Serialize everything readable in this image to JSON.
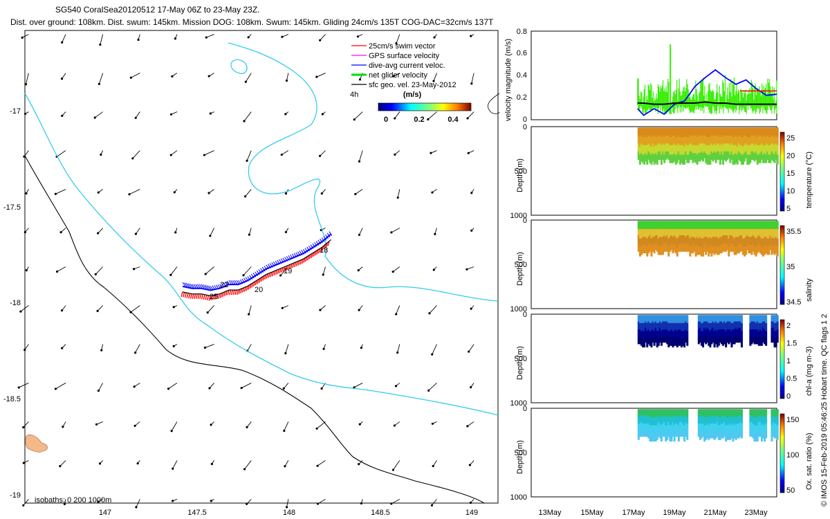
{
  "header": {
    "line1": "SG540 CoralSea20120512 17-May 06Z to 23-May 23Z.",
    "line2": "Dist. over ground: 108km. Dist. swum: 145km. Mission DOG: 108km. Swum: 145km. Gliding 24cm/s 135T COG-DAC=32cm/s 137T"
  },
  "map": {
    "xticks": [
      "147",
      "147.5",
      "148",
      "148.5",
      "149"
    ],
    "yticks": [
      "-17",
      "-17.5",
      "-18",
      "-18.5",
      "-19"
    ],
    "isobaths_label": "isobaths: 0   200  1000m",
    "track_labels": [
      "18",
      "19",
      "20",
      "22",
      "25"
    ],
    "h_label": "4h",
    "legend": [
      {
        "label": "25cm/s swim vector",
        "color": "#ff0000"
      },
      {
        "label": "GPS surface velocity",
        "color": "#ff00ff"
      },
      {
        "label": "dive-avg current veloc.",
        "color": "#0000ff"
      },
      {
        "label": "net glider velocity",
        "color": "#00dd00"
      },
      {
        "label": "sfc geo. vel. 23-May-2012",
        "color": "#000000"
      }
    ],
    "colorbar": {
      "title": "(m/s)",
      "ticks": [
        "0",
        "0.2",
        "0.4"
      ]
    }
  },
  "panels": {
    "velocity": {
      "ylabel": "velocity magnitude (m/s)",
      "yticks": [
        "0",
        "0.2",
        "0.4",
        "0.6",
        "0.8"
      ]
    },
    "depth_ylabel": "Depth (m)",
    "depth_ticks": [
      "0",
      "500",
      "1000"
    ],
    "temperature": {
      "label": "temperature (°C)",
      "cticks": [
        "5",
        "10",
        "15",
        "20",
        "25"
      ]
    },
    "salinity": {
      "label": "salinity",
      "cticks": [
        "34.5",
        "35",
        "35.5"
      ]
    },
    "chla": {
      "label": "chl-a (mg m-3)",
      "cticks": [
        "0",
        "0.5",
        "1",
        "1.5",
        "2"
      ]
    },
    "oxygen": {
      "label": "Ox. sat. ratio (%)",
      "cticks": [
        "50",
        "100",
        "150"
      ]
    },
    "xticks": [
      "13May",
      "15May",
      "17May",
      "19May",
      "21May",
      "23May"
    ]
  },
  "side_text": "© IMOS 15-Feb-2019 05:46:25 Hobart time. QC flags 1  2",
  "chart_data": [
    {
      "type": "scatter",
      "title": "SG540 CoralSea20120512 17-May 06Z to 23-May 23Z.",
      "xlim": [
        146.6,
        149.15
      ],
      "ylim": [
        -19.02,
        -16.58
      ],
      "track": {
        "x": [
          147.45,
          147.5,
          147.55,
          147.6,
          147.65,
          147.7,
          147.75,
          147.8,
          147.85,
          147.9,
          147.95,
          148.0,
          148.05,
          148.1,
          148.15,
          148.2,
          148.25
        ],
        "y": [
          -17.93,
          -17.94,
          -17.94,
          -17.95,
          -17.94,
          -17.92,
          -17.92,
          -17.9,
          -17.87,
          -17.84,
          -17.82,
          -17.8,
          -17.78,
          -17.76,
          -17.73,
          -17.7,
          -17.66
        ]
      }
    },
    {
      "type": "line",
      "title": "",
      "ylabel": "velocity magnitude (m/s)",
      "ylim": [
        0,
        0.8
      ],
      "x_days": [
        17.2,
        17.5,
        18.0,
        18.5,
        19.0,
        19.5,
        20.0,
        20.5,
        21.0,
        21.5,
        22.0,
        22.5,
        23.0,
        23.5,
        24.0
      ],
      "series": [
        {
          "name": "dive-avg current veloc.",
          "values": [
            0.1,
            0.04,
            0.1,
            0.05,
            0.14,
            0.17,
            0.3,
            0.38,
            0.45,
            0.38,
            0.32,
            0.36,
            0.28,
            0.22,
            0.23
          ]
        },
        {
          "name": "net glider velocity",
          "values": [
            0.45,
            0.28,
            0.35,
            0.4,
            0.32,
            0.25,
            0.28,
            0.25,
            0.22,
            0.3,
            0.4,
            0.25,
            0.2,
            0.15,
            0.12
          ]
        },
        {
          "name": "sfc geo. vel. 23-May-2012",
          "values": [
            0.15,
            0.15,
            0.14,
            0.14,
            0.15,
            0.15,
            0.15,
            0.16,
            0.15,
            0.15,
            0.14,
            0.14,
            0.14,
            0.14,
            0.14
          ]
        }
      ]
    }
  ]
}
